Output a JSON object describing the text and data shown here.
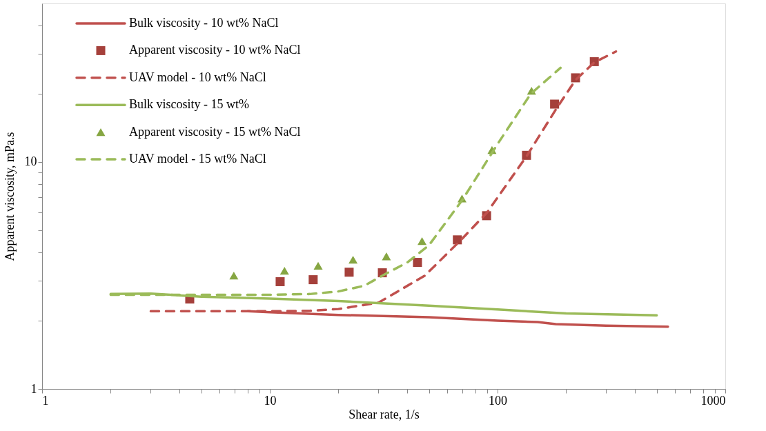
{
  "chart_data": {
    "type": "line",
    "xlabel": "Shear rate, 1/s",
    "ylabel": "Apparent viscosity, mPa.s",
    "log": "xy",
    "grid": false,
    "legend": "top left",
    "xlim": [
      1,
      1000
    ],
    "ylim": [
      1,
      50
    ],
    "xticks": [
      1,
      {
        "value": 2,
        "label": null
      },
      {
        "value": 3,
        "label": null
      },
      {
        "value": 4,
        "label": null
      },
      {
        "value": 5,
        "label": null
      },
      {
        "value": 6,
        "label": null
      },
      {
        "value": 7,
        "label": null
      },
      {
        "value": 8,
        "label": null
      },
      {
        "value": 9,
        "label": null
      },
      10,
      {
        "value": 20,
        "label": null
      },
      {
        "value": 30,
        "label": null
      },
      {
        "value": 40,
        "label": null
      },
      {
        "value": 50,
        "label": null
      },
      {
        "value": 60,
        "label": null
      },
      {
        "value": 70,
        "label": null
      },
      {
        "value": 80,
        "label": null
      },
      {
        "value": 90,
        "label": null
      },
      100,
      {
        "value": 200,
        "label": null
      },
      {
        "value": 300,
        "label": null
      },
      {
        "value": 400,
        "label": null
      },
      {
        "value": 500,
        "label": null
      },
      {
        "value": 600,
        "label": null
      },
      {
        "value": 700,
        "label": null
      },
      {
        "value": 800,
        "label": null
      },
      {
        "value": 900,
        "label": null
      },
      1000
    ],
    "yticks": [
      1,
      {
        "value": 2,
        "label": null
      },
      {
        "value": 3,
        "label": null
      },
      {
        "value": 4,
        "label": null
      },
      {
        "value": 5,
        "label": null
      },
      {
        "value": 6,
        "label": null
      },
      {
        "value": 7,
        "label": null
      },
      {
        "value": 8,
        "label": null
      },
      {
        "value": 9,
        "label": null
      },
      10,
      {
        "value": 20,
        "label": null
      },
      {
        "value": 30,
        "label": null
      },
      {
        "value": 40,
        "label": null
      }
    ],
    "series": [
      {
        "name": "Bulk viscosity - 10 wt% NaCl",
        "line_style": "solid",
        "marker": "none",
        "color": "#c0504d",
        "x": [
          8,
          10,
          20,
          50,
          100,
          150,
          180,
          300,
          560
        ],
        "values": [
          2.2,
          2.18,
          2.12,
          2.07,
          2.0,
          1.97,
          1.93,
          1.9,
          1.88
        ]
      },
      {
        "name": "Apparent viscosity - 10 wt% NaCl",
        "type": "scatter",
        "marker": "square",
        "color": "#a5403b",
        "x": [
          4.45,
          11.1,
          15.5,
          22.3,
          31.2,
          44.5,
          66.6,
          89.5,
          134,
          178,
          220,
          266
        ],
        "values": [
          2.49,
          2.97,
          3.03,
          3.27,
          3.25,
          3.61,
          4.54,
          5.8,
          10.7,
          18,
          23.5,
          27.7
        ]
      },
      {
        "name": "UAV model - 10 wt% NaCl",
        "line_style": "dashed",
        "marker": "none",
        "color": "#c0504d",
        "x": [
          3,
          10,
          15,
          20,
          30,
          48,
          70,
          90,
          134,
          180,
          220,
          266,
          331
        ],
        "values": [
          2.2,
          2.2,
          2.21,
          2.25,
          2.4,
          3.16,
          4.6,
          6.0,
          10.6,
          17,
          23,
          27.5,
          30.7
        ]
      },
      {
        "name": "Bulk viscosity - 15 wt%",
        "line_style": "solid",
        "marker": "none",
        "color": "#9bbb59",
        "x": [
          2,
          3,
          5,
          10,
          20,
          50,
          100,
          200,
          500
        ],
        "values": [
          2.62,
          2.63,
          2.55,
          2.5,
          2.44,
          2.33,
          2.24,
          2.15,
          2.11
        ]
      },
      {
        "name": "Apparent viscosity - 15 wt% NaCl",
        "type": "scatter",
        "marker": "triangle",
        "color": "#86a642",
        "x": [
          6.95,
          11.6,
          16.3,
          23.2,
          32.5,
          46.6,
          69.8,
          94.5,
          141
        ],
        "values": [
          3.16,
          3.32,
          3.49,
          3.71,
          3.84,
          4.48,
          6.91,
          11.3,
          20.6
        ]
      },
      {
        "name": "UAV model - 15 wt% NaCl",
        "line_style": "dashed",
        "marker": "none",
        "color": "#9bbb59",
        "x": [
          2,
          5,
          10,
          15,
          20,
          26,
          32.5,
          40,
          50,
          70,
          100,
          140,
          189
        ],
        "values": [
          2.6,
          2.6,
          2.6,
          2.62,
          2.69,
          2.85,
          3.23,
          3.6,
          4.3,
          6.8,
          12,
          20,
          26
        ]
      }
    ]
  }
}
